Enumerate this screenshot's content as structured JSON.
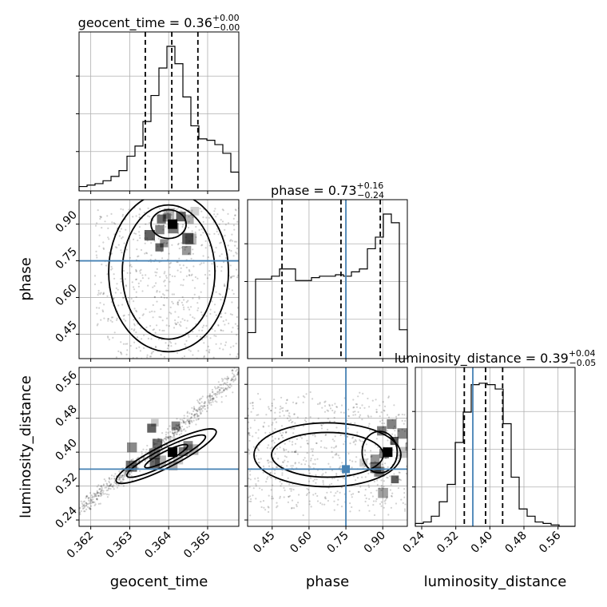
{
  "chart_data": {
    "type": "corner",
    "parameters": [
      "geocent_time",
      "phase",
      "luminosity_distance"
    ],
    "injection_color": "#4682b4",
    "marginals": [
      {
        "parameter": "geocent_time",
        "title_name": "geocent_time",
        "title_value": "0.36",
        "title_plus": "+0.00",
        "title_minus": "−0.00",
        "range": [
          0.3617,
          0.3658
        ],
        "bin_edges_count": 20,
        "bin_heights": [
          0.03,
          0.04,
          0.05,
          0.07,
          0.1,
          0.14,
          0.24,
          0.31,
          0.48,
          0.66,
          0.85,
          1.0,
          0.88,
          0.65,
          0.45,
          0.36,
          0.35,
          0.32,
          0.26,
          0.13
        ],
        "quantiles": [
          0.3634,
          0.36408,
          0.36475
        ],
        "injection": null
      },
      {
        "parameter": "phase",
        "title_name": "phase",
        "title_value": "0.73",
        "title_plus": "+0.16",
        "title_minus": "−0.24",
        "range": [
          0.35,
          1.0
        ],
        "bin_edges_count": 20,
        "bin_heights": [
          0.18,
          0.55,
          0.55,
          0.57,
          0.62,
          0.62,
          0.54,
          0.54,
          0.56,
          0.57,
          0.57,
          0.58,
          0.57,
          0.6,
          0.62,
          0.76,
          0.84,
          1.0,
          0.94,
          0.2
        ],
        "quantiles": [
          0.49,
          0.73,
          0.89
        ],
        "injection": 0.75
      },
      {
        "parameter": "luminosity_distance",
        "title_name": "luminosity_distance",
        "title_value": "0.39",
        "title_plus": "+0.04",
        "title_minus": "−0.05",
        "range": [
          0.225,
          0.6
        ],
        "bin_edges_count": 20,
        "bin_heights": [
          0.02,
          0.03,
          0.07,
          0.17,
          0.29,
          0.58,
          0.79,
          0.98,
          0.99,
          0.98,
          0.95,
          0.71,
          0.34,
          0.12,
          0.07,
          0.03,
          0.02,
          0.01,
          0.0,
          0.0
        ],
        "quantiles": [
          0.34,
          0.39,
          0.43
        ],
        "injection": 0.36
      }
    ],
    "joint_panels": [
      {
        "x": "geocent_time",
        "y": "phase",
        "xrange": [
          0.3617,
          0.3658
        ],
        "yrange": [
          0.35,
          1.0
        ],
        "mode_center": [
          0.3641,
          0.9
        ],
        "injection": [
          null,
          0.75
        ]
      },
      {
        "x": "geocent_time",
        "y": "luminosity_distance",
        "xrange": [
          0.3617,
          0.3658
        ],
        "yrange": [
          0.225,
          0.6
        ],
        "mode_center": [
          0.3641,
          0.4
        ],
        "injection": [
          null,
          0.36
        ]
      },
      {
        "x": "phase",
        "y": "luminosity_distance",
        "xrange": [
          0.35,
          1.0
        ],
        "yrange": [
          0.225,
          0.6
        ],
        "mode_center": [
          0.92,
          0.4
        ],
        "injection": [
          0.75,
          0.36
        ]
      }
    ],
    "axes": {
      "geocent_time": {
        "label": "geocent_time",
        "ticks": [
          0.362,
          0.363,
          0.364,
          0.365
        ],
        "tick_labels": [
          "0.362",
          "0.363",
          "0.364",
          "0.365"
        ]
      },
      "phase": {
        "label": "phase",
        "ticks": [
          0.45,
          0.6,
          0.75,
          0.9
        ],
        "tick_labels": [
          "0.45",
          "0.60",
          "0.75",
          "0.90"
        ]
      },
      "luminosity_distance": {
        "label": "luminosity_distance",
        "ticks": [
          0.24,
          0.32,
          0.4,
          0.48,
          0.56
        ],
        "tick_labels": [
          "0.24",
          "0.32",
          "0.40",
          "0.48",
          "0.56"
        ]
      }
    },
    "grid": true,
    "legend": null
  }
}
